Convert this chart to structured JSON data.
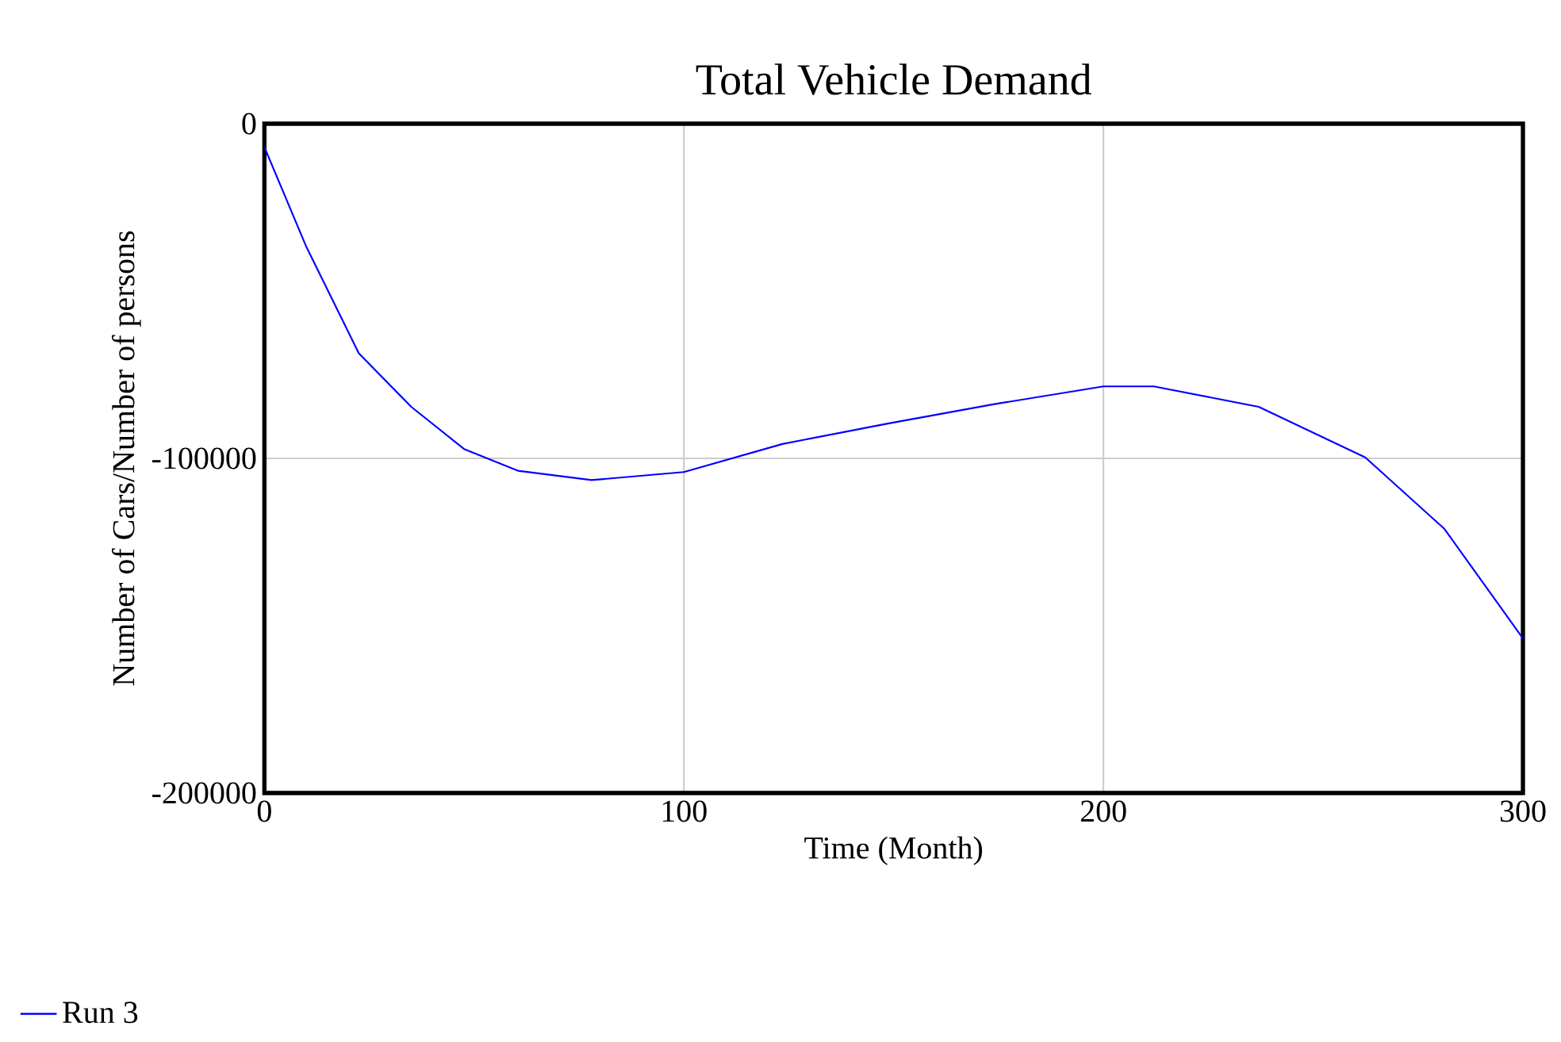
{
  "chart_data": {
    "type": "line",
    "title": "Total Vehicle Demand",
    "xlabel": "Time (Month)",
    "ylabel": "Number of Cars/Number of persons",
    "xlim": [
      0,
      300
    ],
    "ylim": [
      -200000,
      0
    ],
    "xticks": [
      0,
      100,
      200,
      300
    ],
    "yticks": [
      -200000,
      -100000,
      0
    ],
    "grid": true,
    "legend": "bottom left",
    "x": [
      0,
      10,
      22.5,
      35,
      47.7,
      60.4,
      78,
      100,
      123.5,
      148.6,
      174,
      200,
      212,
      237,
      262.4,
      281.3,
      300
    ],
    "series": [
      {
        "name": "Run 3",
        "color": "#0000ff",
        "values": [
          -7000,
          -36800,
          -68600,
          -84600,
          -97300,
          -103700,
          -106500,
          -104100,
          -95700,
          -89600,
          -83800,
          -78500,
          -78500,
          -84600,
          -99700,
          -121100,
          -153800
        ]
      }
    ]
  }
}
